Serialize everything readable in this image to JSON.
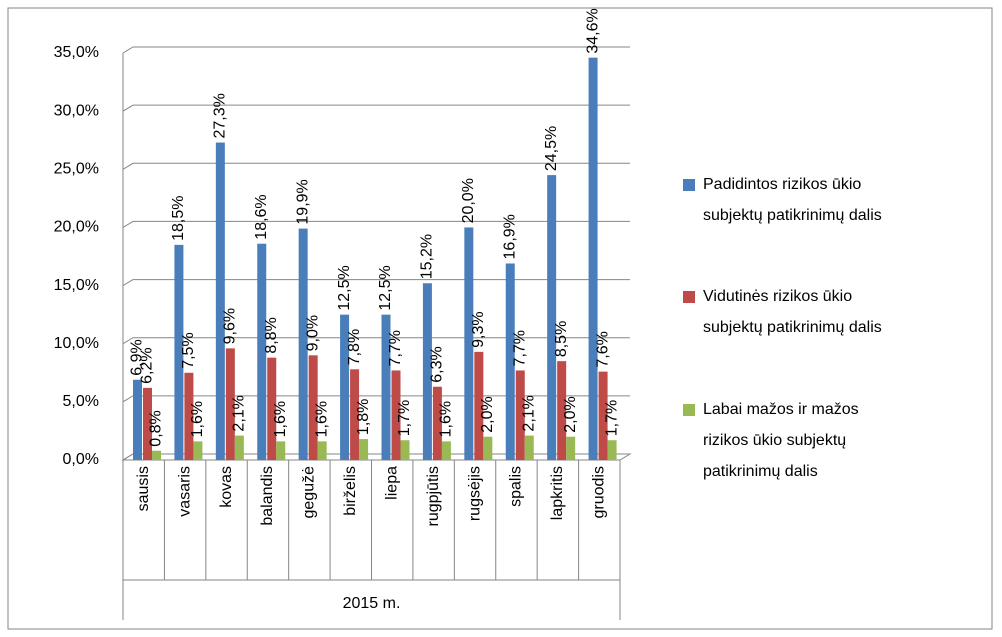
{
  "chart_data": {
    "type": "bar",
    "categories": [
      "sausis",
      "vasaris",
      "kovas",
      "balandis",
      "gegužė",
      "birželis",
      "liepa",
      "rugpjūtis",
      "rugsėjis",
      "spalis",
      "lapkritis",
      "gruodis"
    ],
    "group_label": "2015 m.",
    "series": [
      {
        "name": "Padidintos rizikos ūkio subjektų patikrinimų dalis",
        "color": "#4a7ebb",
        "values": [
          6.9,
          18.5,
          27.3,
          18.6,
          19.9,
          12.5,
          12.5,
          15.2,
          20.0,
          16.9,
          24.5,
          34.6
        ],
        "value_labels": [
          "6,9%",
          "18,5%",
          "27,3%",
          "18,6%",
          "19,9%",
          "12,5%",
          "12,5%",
          "15,2%",
          "20,0%",
          "16,9%",
          "24,5%",
          "34,6%"
        ]
      },
      {
        "name": "Vidutinės rizikos ūkio subjektų patikrinimų dalis",
        "color": "#be4b48",
        "values": [
          6.2,
          7.5,
          9.6,
          8.8,
          9.0,
          7.8,
          7.7,
          6.3,
          9.3,
          7.7,
          8.5,
          7.6
        ],
        "value_labels": [
          "6,2%",
          "7,5%",
          "9,6%",
          "8,8%",
          "9,0%",
          "7,8%",
          "7,7%",
          "6,3%",
          "9,3%",
          "7,7%",
          "8,5%",
          "7,6%"
        ]
      },
      {
        "name": "Labai mažos ir mažos rizikos ūkio subjektų patikrinimų dalis",
        "color": "#98b954",
        "values": [
          0.8,
          1.6,
          2.1,
          1.6,
          1.6,
          1.8,
          1.7,
          1.6,
          2.0,
          2.1,
          2.0,
          1.7
        ],
        "value_labels": [
          "0,8%",
          "1,6%",
          "2,1%",
          "1,6%",
          "1,6%",
          "1,8%",
          "1,7%",
          "1,6%",
          "2,0%",
          "2,1%",
          "2,0%",
          "1,7%"
        ]
      }
    ],
    "ylim": [
      0,
      35
    ],
    "yticks": [
      {
        "value": 0,
        "label": "0,0%"
      },
      {
        "value": 5,
        "label": "5,0%"
      },
      {
        "value": 10,
        "label": "10,0%"
      },
      {
        "value": 15,
        "label": "15,0%"
      },
      {
        "value": 20,
        "label": "20,0%"
      },
      {
        "value": 25,
        "label": "25,0%"
      },
      {
        "value": 30,
        "label": "30,0%"
      },
      {
        "value": 35,
        "label": "35,0%"
      }
    ],
    "grid": true,
    "legend": "right"
  }
}
